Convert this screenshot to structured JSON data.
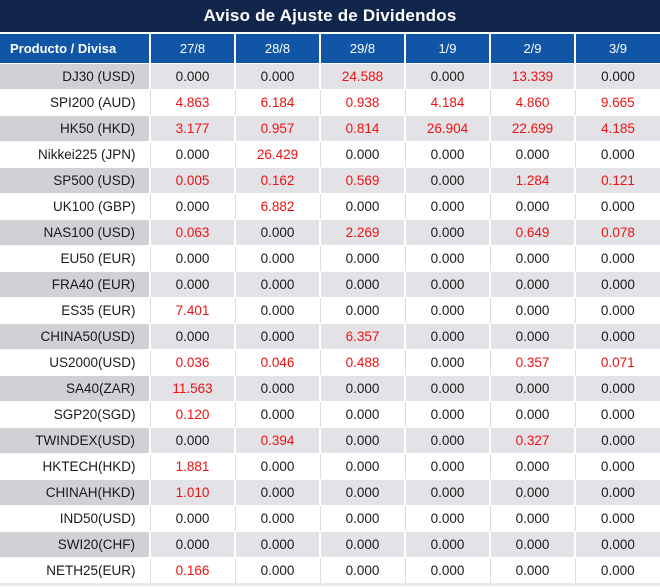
{
  "title": "Aviso de Ajuste de Dividendos",
  "table": {
    "header": {
      "product_label": "Producto / Divisa",
      "dates": [
        "27/8",
        "28/8",
        "29/8",
        "1/9",
        "2/9",
        "3/9"
      ]
    },
    "rows": [
      {
        "product": "DJ30 (USD)",
        "values": [
          "0.000",
          "0.000",
          "24.588",
          "0.000",
          "13.339",
          "0.000"
        ],
        "red": [
          false,
          false,
          true,
          false,
          true,
          false
        ]
      },
      {
        "product": "SPI200 (AUD)",
        "values": [
          "4.863",
          "6.184",
          "0.938",
          "4.184",
          "4.860",
          "9.665"
        ],
        "red": [
          true,
          true,
          true,
          true,
          true,
          true
        ]
      },
      {
        "product": "HK50 (HKD)",
        "values": [
          "3.177",
          "0.957",
          "0.814",
          "26.904",
          "22.699",
          "4.185"
        ],
        "red": [
          true,
          true,
          true,
          true,
          true,
          true
        ]
      },
      {
        "product": "Nikkei225 (JPN)",
        "values": [
          "0.000",
          "26.429",
          "0.000",
          "0.000",
          "0.000",
          "0.000"
        ],
        "red": [
          false,
          true,
          false,
          false,
          false,
          false
        ]
      },
      {
        "product": "SP500 (USD)",
        "values": [
          "0.005",
          "0.162",
          "0.569",
          "0.000",
          "1.284",
          "0.121"
        ],
        "red": [
          true,
          true,
          true,
          false,
          true,
          true
        ]
      },
      {
        "product": "UK100 (GBP)",
        "values": [
          "0.000",
          "6.882",
          "0.000",
          "0.000",
          "0.000",
          "0.000"
        ],
        "red": [
          false,
          true,
          false,
          false,
          false,
          false
        ]
      },
      {
        "product": "NAS100 (USD)",
        "values": [
          "0.063",
          "0.000",
          "2.269",
          "0.000",
          "0.649",
          "0.078"
        ],
        "red": [
          true,
          false,
          true,
          false,
          true,
          true
        ]
      },
      {
        "product": "EU50 (EUR)",
        "values": [
          "0.000",
          "0.000",
          "0.000",
          "0.000",
          "0.000",
          "0.000"
        ],
        "red": [
          false,
          false,
          false,
          false,
          false,
          false
        ]
      },
      {
        "product": "FRA40 (EUR)",
        "values": [
          "0.000",
          "0.000",
          "0.000",
          "0.000",
          "0.000",
          "0.000"
        ],
        "red": [
          false,
          false,
          false,
          false,
          false,
          false
        ]
      },
      {
        "product": "ES35 (EUR)",
        "values": [
          "7.401",
          "0.000",
          "0.000",
          "0.000",
          "0.000",
          "0.000"
        ],
        "red": [
          true,
          false,
          false,
          false,
          false,
          false
        ]
      },
      {
        "product": "CHINA50(USD)",
        "values": [
          "0.000",
          "0.000",
          "6.357",
          "0.000",
          "0.000",
          "0.000"
        ],
        "red": [
          false,
          false,
          true,
          false,
          false,
          false
        ]
      },
      {
        "product": "US2000(USD)",
        "values": [
          "0.036",
          "0.046",
          "0.488",
          "0.000",
          "0.357",
          "0.071"
        ],
        "red": [
          true,
          true,
          true,
          false,
          true,
          true
        ]
      },
      {
        "product": "SA40(ZAR)",
        "values": [
          "11.563",
          "0.000",
          "0.000",
          "0.000",
          "0.000",
          "0.000"
        ],
        "red": [
          true,
          false,
          false,
          false,
          false,
          false
        ]
      },
      {
        "product": "SGP20(SGD)",
        "values": [
          "0.120",
          "0.000",
          "0.000",
          "0.000",
          "0.000",
          "0.000"
        ],
        "red": [
          true,
          false,
          false,
          false,
          false,
          false
        ]
      },
      {
        "product": "TWINDEX(USD)",
        "values": [
          "0.000",
          "0.394",
          "0.000",
          "0.000",
          "0.327",
          "0.000"
        ],
        "red": [
          false,
          true,
          false,
          false,
          true,
          false
        ]
      },
      {
        "product": "HKTECH(HKD)",
        "values": [
          "1.881",
          "0.000",
          "0.000",
          "0.000",
          "0.000",
          "0.000"
        ],
        "red": [
          true,
          false,
          false,
          false,
          false,
          false
        ]
      },
      {
        "product": "CHINAH(HKD)",
        "values": [
          "1.010",
          "0.000",
          "0.000",
          "0.000",
          "0.000",
          "0.000"
        ],
        "red": [
          true,
          false,
          false,
          false,
          false,
          false
        ]
      },
      {
        "product": "IND50(USD)",
        "values": [
          "0.000",
          "0.000",
          "0.000",
          "0.000",
          "0.000",
          "0.000"
        ],
        "red": [
          false,
          false,
          false,
          false,
          false,
          false
        ]
      },
      {
        "product": "SWI20(CHF)",
        "values": [
          "0.000",
          "0.000",
          "0.000",
          "0.000",
          "0.000",
          "0.000"
        ],
        "red": [
          false,
          false,
          false,
          false,
          false,
          false
        ]
      },
      {
        "product": "NETH25(EUR)",
        "values": [
          "0.166",
          "0.000",
          "0.000",
          "0.000",
          "0.000",
          "0.000"
        ],
        "red": [
          true,
          false,
          false,
          false,
          false,
          false
        ]
      }
    ]
  },
  "colors": {
    "title_bg": "#12254a",
    "header_bg": "#1156a6",
    "row_gray": "#e3e3e7",
    "row_gray_first": "#d0d0d5",
    "value_red": "#ee1111",
    "text": "#1a1a1a"
  }
}
